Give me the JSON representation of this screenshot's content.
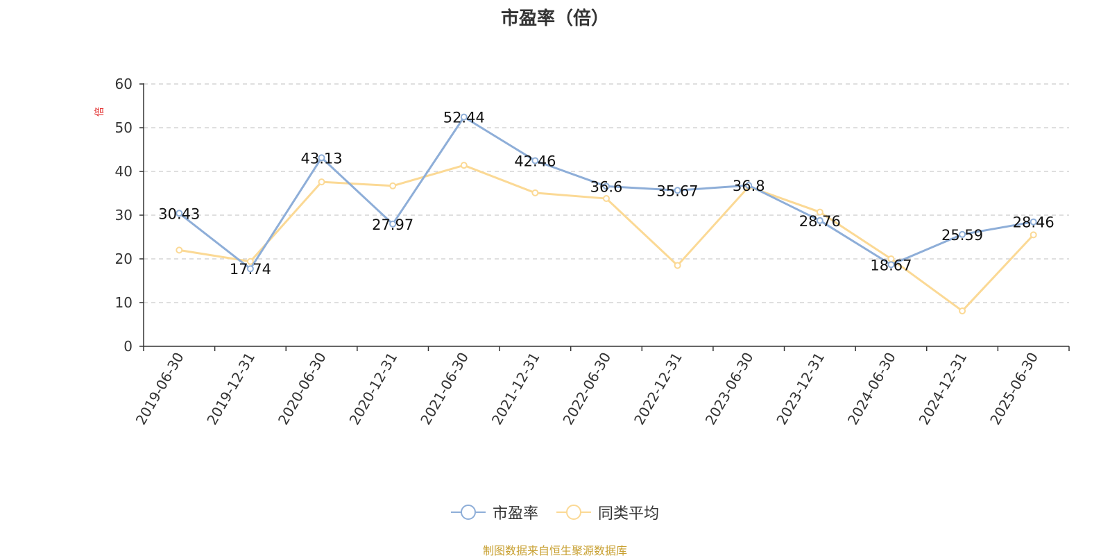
{
  "chart_data": {
    "type": "line",
    "title": "市盈率（倍）",
    "ylabel": "倍",
    "xlabel": "",
    "ylim": [
      0,
      60
    ],
    "yticks": [
      0,
      10,
      20,
      30,
      40,
      50,
      60
    ],
    "grid": true,
    "legend_position": "bottom",
    "categories": [
      "2019-06-30",
      "2019-12-31",
      "2020-06-30",
      "2020-12-31",
      "2021-06-30",
      "2021-12-31",
      "2022-06-30",
      "2022-12-31",
      "2023-06-30",
      "2023-12-31",
      "2024-06-30",
      "2024-12-31",
      "2025-06-30"
    ],
    "series": [
      {
        "name": "市盈率",
        "color": "#8eaed8",
        "show_labels": true,
        "values": [
          30.43,
          17.74,
          43.13,
          27.97,
          52.44,
          42.46,
          36.6,
          35.67,
          36.8,
          28.76,
          18.67,
          25.59,
          28.46
        ],
        "labels": [
          "30.43",
          "17.74",
          "43.13",
          "27.97",
          "52.44",
          "42.46",
          "36.6",
          "35.67",
          "36.8",
          "28.76",
          "18.67",
          "25.59",
          "28.46"
        ]
      },
      {
        "name": "同类平均",
        "color": "#fbd995",
        "show_labels": false,
        "values": [
          22.0,
          19.4,
          37.6,
          36.7,
          41.4,
          35.1,
          33.8,
          18.5,
          36.5,
          30.7,
          20.0,
          8.1,
          25.5
        ]
      }
    ]
  },
  "footer": {
    "source": "制图数据来自恒生聚源数据库"
  },
  "colors": {
    "ylabel": "#e02020",
    "axis": "#333333",
    "grid": "#cccccc",
    "source": "#c8a031"
  }
}
